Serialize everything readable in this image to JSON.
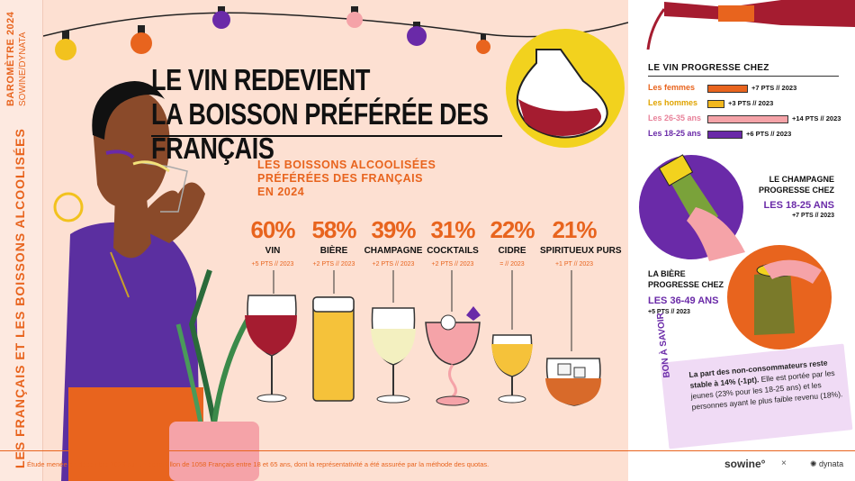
{
  "side": {
    "barometre": "BAROMÈTRE 2024",
    "brand_line": "SOWINE/DYNATA",
    "vertical_title": "LES FRANÇAIS ET LES BOISSONS ALCOOLISÉES"
  },
  "header": {
    "title_line1": "LE VIN REDEVIENT",
    "title_line2": "LA BOISSON PRÉFÉRÉE DES FRANÇAIS"
  },
  "subtitle": "LES BOISSONS ALCOOLISÉES PRÉFÉRÉES DES FRANÇAIS EN 2024",
  "drinks": [
    {
      "pct": "60%",
      "name": "VIN",
      "change": "+5 PTS // 2023"
    },
    {
      "pct": "58%",
      "name": "BIÈRE",
      "change": "+2 PTS // 2023"
    },
    {
      "pct": "39%",
      "name": "CHAMPAGNE",
      "change": "+2 PTS // 2023"
    },
    {
      "pct": "31%",
      "name": "COCKTAILS",
      "change": "+2 PTS // 2023"
    },
    {
      "pct": "22%",
      "name": "CIDRE",
      "change": "= // 2023"
    },
    {
      "pct": "21%",
      "name": "SPIRITUEUX PURS",
      "change": "+1 PT // 2023"
    }
  ],
  "wine_progress": {
    "title": "LE VIN PROGRESSE CHEZ",
    "rows": [
      {
        "label": "Les femmes",
        "value": "+7 PTS // 2023",
        "points": 7,
        "color": "#e8641e",
        "label_color": "#e8641e"
      },
      {
        "label": "Les hommes",
        "value": "+3 PTS // 2023",
        "points": 3,
        "color": "#f2b81e",
        "label_color": "#e0a400"
      },
      {
        "label": "Les 26-35 ans",
        "value": "+14 PTS // 2023",
        "points": 14,
        "color": "#f5a3a8",
        "label_color": "#e8829a"
      },
      {
        "label": "Les 18-25 ans",
        "value": "+6 PTS // 2023",
        "points": 6,
        "color": "#6a2aa8",
        "label_color": "#6a2aa8"
      }
    ]
  },
  "champagne": {
    "title": "LE CHAMPAGNE PROGRESSE CHEZ",
    "group": "LES 18-25 ANS",
    "change": "+7 PTS // 2023"
  },
  "beer": {
    "title": "LA BIÈRE PROGRESSE CHEZ",
    "group": "LES 36-49 ANS",
    "change": "+5 PTS // 2023"
  },
  "bon_a_savoir": {
    "tag": "BON À SAVOIR",
    "bold": "La part des non-consommateurs reste stable à 14% (-1pt).",
    "text": " Elle est portée par les jeunes (23% pour les 18-25 ans) et les personnes ayant le plus faible revenu (18%)."
  },
  "footnote": "Étude menée en décembre 2023 sur un échantillon de 1058 Français entre 18 et 65 ans, dont la représentativité a été assurée par la méthode des quotas.",
  "brands": {
    "sowine": "sowine°",
    "x": "×",
    "dynata": "dynata"
  },
  "colors": {
    "orange": "#e8641e",
    "purple": "#6a2aa8",
    "pink": "#f5a3a8",
    "yellow": "#f2b81e",
    "wine": "#a51c30"
  }
}
